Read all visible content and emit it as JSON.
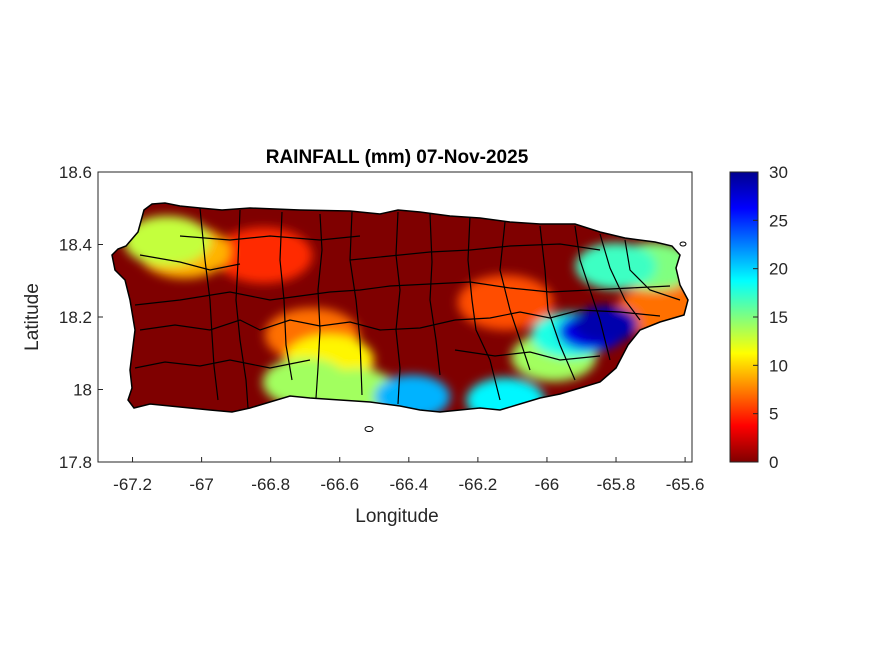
{
  "figure": {
    "title": "RAINFALL (mm) 07-Nov-2025",
    "xlabel": "Longitude",
    "ylabel": "Latitude"
  },
  "chart_data": {
    "type": "heatmap",
    "title": "RAINFALL (mm) 07-Nov-2025",
    "xlabel": "Longitude",
    "ylabel": "Latitude",
    "xlim": [
      -67.3,
      -65.58
    ],
    "ylim": [
      17.8,
      18.6
    ],
    "xticks": [
      -67.2,
      -67,
      -66.8,
      -66.6,
      -66.4,
      -66.2,
      -66,
      -65.8,
      -65.6
    ],
    "yticks": [
      17.8,
      18,
      18.2,
      18.4,
      18.6
    ],
    "xtick_labels": [
      "-67.2",
      "-67",
      "-66.8",
      "-66.6",
      "-66.4",
      "-66.2",
      "-66",
      "-65.8",
      "-65.6"
    ],
    "ytick_labels": [
      "17.8",
      "18",
      "18.2",
      "18.4",
      "18.6"
    ],
    "grid": false,
    "colorbar": {
      "colormap": "jet-reversed",
      "range": [
        0,
        30
      ],
      "ticks": [
        0,
        5,
        10,
        15,
        20,
        25,
        30
      ],
      "tick_labels": [
        "0",
        "5",
        "10",
        "15",
        "20",
        "25",
        "30"
      ],
      "low_color": "#800000",
      "high_color": "#00008f"
    },
    "background_value_mm": 0,
    "rain_cells": [
      {
        "region": "northwest-coast",
        "lon": -67.1,
        "lat": 18.41,
        "mm": 13
      },
      {
        "region": "northwest-coast",
        "lon": -67.05,
        "lat": 18.38,
        "mm": 9
      },
      {
        "region": "north-central",
        "lon": -66.82,
        "lat": 18.37,
        "mm": 5
      },
      {
        "region": "south-central",
        "lon": -66.68,
        "lat": 18.15,
        "mm": 7
      },
      {
        "region": "south-central",
        "lon": -66.63,
        "lat": 18.08,
        "mm": 11
      },
      {
        "region": "south-central",
        "lon": -66.7,
        "lat": 18.02,
        "mm": 14
      },
      {
        "region": "south-coast",
        "lon": -66.55,
        "lat": 17.99,
        "mm": 14
      },
      {
        "region": "south-coast",
        "lon": -66.39,
        "lat": 17.98,
        "mm": 21
      },
      {
        "region": "south-coast",
        "lon": -66.12,
        "lat": 17.97,
        "mm": 19
      },
      {
        "region": "southeast",
        "lon": -65.98,
        "lat": 18.09,
        "mm": 14
      },
      {
        "region": "east-central",
        "lon": -65.93,
        "lat": 18.15,
        "mm": 18
      },
      {
        "region": "east-central",
        "lon": -65.87,
        "lat": 18.16,
        "mm": 27
      },
      {
        "region": "east-central",
        "lon": -65.83,
        "lat": 18.18,
        "mm": 29
      },
      {
        "region": "east-central",
        "lon": -66.12,
        "lat": 18.24,
        "mm": 6
      },
      {
        "region": "northeast",
        "lon": -65.8,
        "lat": 18.34,
        "mm": 17
      },
      {
        "region": "northeast",
        "lon": -65.69,
        "lat": 18.34,
        "mm": 15
      },
      {
        "region": "northeast",
        "lon": -65.66,
        "lat": 18.22,
        "mm": 7
      }
    ]
  },
  "colors": {
    "axis": "#262626",
    "boundary": "#000000",
    "background": "#ffffff"
  }
}
